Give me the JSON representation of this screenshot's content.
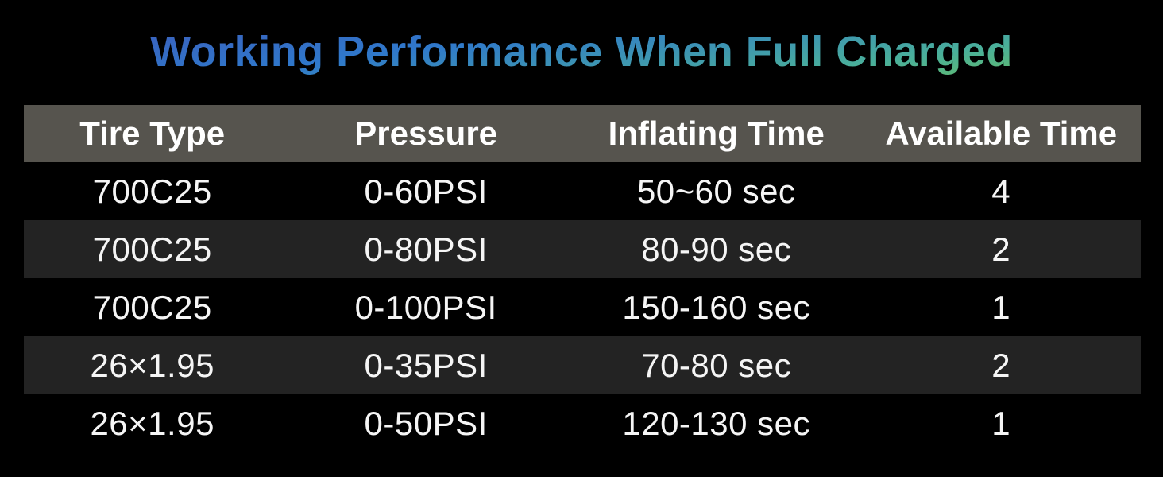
{
  "title": "Working Performance When Full Charged",
  "colors": {
    "background": "#000000",
    "header_bg": "#56544e",
    "row_bg": "#000000",
    "row_alt_bg": "#232323",
    "header_text": "#ffffff",
    "row_text": "#f5f5f5",
    "title_gradient": [
      "#3f58b8",
      "#2f78cb",
      "#4aaf9a",
      "#6fc24f"
    ]
  },
  "table": {
    "headers": [
      "Tire Type",
      "Pressure",
      "Inflating Time",
      "Available Time"
    ],
    "rows": [
      [
        "700C25",
        "0-60PSI",
        "50~60 sec",
        "4"
      ],
      [
        "700C25",
        "0-80PSI",
        "80-90 sec",
        "2"
      ],
      [
        "700C25",
        "0-100PSI",
        "150-160 sec",
        "1"
      ],
      [
        "26×1.95",
        "0-35PSI",
        "70-80 sec",
        "2"
      ],
      [
        "26×1.95",
        "0-50PSI",
        "120-130 sec",
        "1"
      ]
    ]
  },
  "chart_data": {
    "type": "table",
    "title": "Working Performance When Full Charged",
    "columns": [
      "Tire Type",
      "Pressure",
      "Inflating Time",
      "Available Time"
    ],
    "rows": [
      [
        "700C25",
        "0-60PSI",
        "50~60 sec",
        "4"
      ],
      [
        "700C25",
        "0-80PSI",
        "80-90 sec",
        "2"
      ],
      [
        "700C25",
        "0-100PSI",
        "150-160 sec",
        "1"
      ],
      [
        "26×1.95",
        "0-35PSI",
        "70-80 sec",
        "2"
      ],
      [
        "26×1.95",
        "0-50PSI",
        "120-130 sec",
        "1"
      ]
    ],
    "notes": "Alternating black / dark-charcoal row striping; grey header bar; gradient blue-to-green title"
  }
}
